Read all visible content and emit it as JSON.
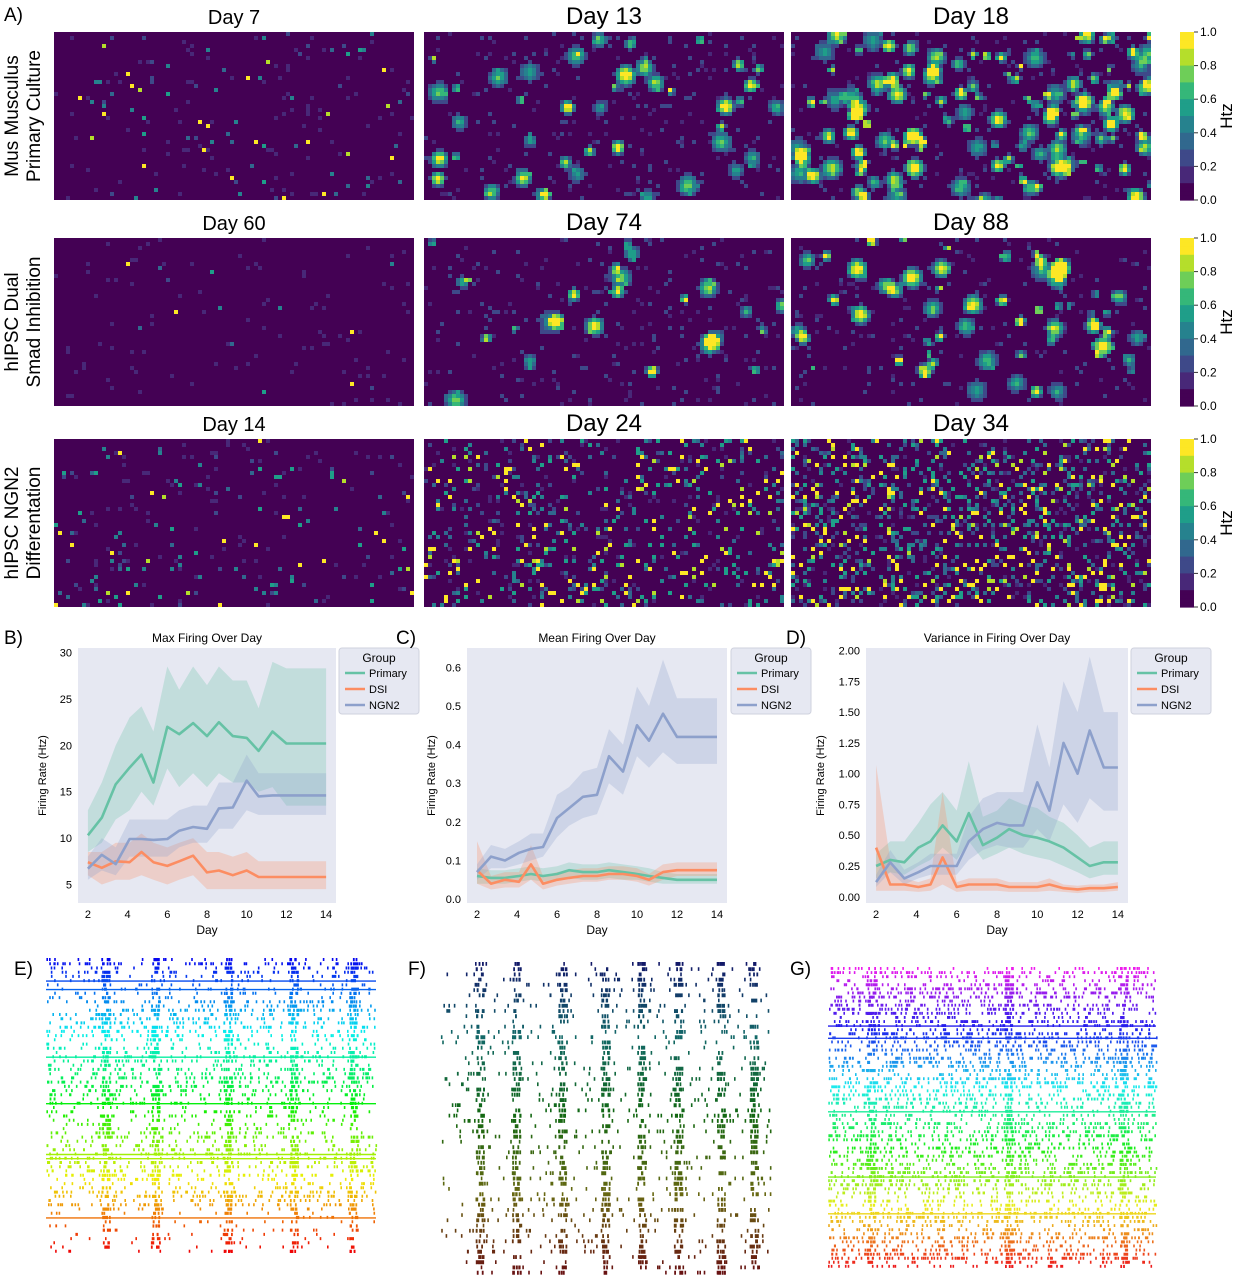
{
  "panel_labels": [
    "A)",
    "B)",
    "C)",
    "D)",
    "E)",
    "F)",
    "G)"
  ],
  "colors": {
    "viridis": [
      "#440154",
      "#482878",
      "#3e4989",
      "#31688e",
      "#26828e",
      "#1f9e89",
      "#35b779",
      "#6ece58",
      "#b5de2b",
      "#fde725"
    ],
    "primary": "#66c2a5",
    "dsi": "#fc8d62",
    "ngn2": "#8da0cb",
    "axes_bg": "#e6e8f2"
  },
  "heatmaps": {
    "rows": [
      {
        "label_lines": [
          "Mus Musculus",
          "Primary Culture"
        ],
        "days": [
          "Day 7",
          "Day 13",
          "Day 18"
        ],
        "density": [
          0.02,
          0.1,
          0.3
        ],
        "pattern": [
          "sparse",
          "blobs",
          "blobs"
        ]
      },
      {
        "label_lines": [
          "hIPSC Dual",
          "Smad Inhibition"
        ],
        "days": [
          "Day 60",
          "Day 74",
          "Day 88"
        ],
        "density": [
          0.008,
          0.06,
          0.14
        ],
        "pattern": [
          "sparse",
          "blobs",
          "blobs"
        ]
      },
      {
        "label_lines": [
          "hIPSC NGN2",
          "Differentation"
        ],
        "days": [
          "Day 14",
          "Day 24",
          "Day 34"
        ],
        "density": [
          0.03,
          0.14,
          0.26
        ],
        "pattern": [
          "sparse",
          "dots",
          "dots"
        ]
      }
    ],
    "colorbar": {
      "label": "Htz",
      "ticks": [
        "0.0",
        "0.2",
        "0.4",
        "0.6",
        "0.8",
        "1.0"
      ]
    }
  },
  "chart_data": [
    {
      "type": "line",
      "title": "Max Firing Over Day",
      "xlabel": "Day",
      "ylabel": "Firing Rate (Htz)",
      "xlim": [
        1.5,
        14.5
      ],
      "ylim": [
        3,
        30.5
      ],
      "xticks": [
        2,
        4,
        6,
        8,
        10,
        12,
        14
      ],
      "yticks": [
        5,
        10,
        15,
        20,
        25,
        30
      ],
      "legend": {
        "title": "Group",
        "placement": "top-right"
      },
      "x": [
        2,
        2.7,
        3.4,
        4.1,
        4.7,
        5.3,
        6,
        6.6,
        7.3,
        8,
        8.6,
        9.3,
        10,
        10.6,
        11.3,
        12,
        12.6,
        13.3,
        14
      ],
      "series": [
        {
          "name": "Primary",
          "values": [
            10.3,
            12.2,
            15.8,
            17.6,
            19.0,
            16.0,
            22.0,
            21.2,
            22.4,
            21.0,
            22.5,
            21.0,
            20.8,
            19.4,
            21.5,
            20.2,
            20.2,
            20.2,
            20.2
          ],
          "lower": [
            8.5,
            9.5,
            12,
            13,
            15,
            13.5,
            17.5,
            15.5,
            17,
            15.5,
            17,
            16,
            16,
            15,
            15.5,
            13.5,
            13.5,
            13.5,
            13.5
          ],
          "upper": [
            13,
            16,
            20,
            23,
            24.2,
            21.5,
            28.5,
            26,
            28.5,
            26.5,
            28.5,
            27,
            27,
            24,
            29,
            28.3,
            28.3,
            28.3,
            28.3
          ]
        },
        {
          "name": "DSI",
          "values": [
            7.4,
            6.8,
            7.5,
            7.4,
            8.5,
            7.4,
            7.0,
            7.5,
            8.1,
            6.3,
            6.5,
            6.0,
            6.5,
            5.8,
            5.8,
            5.8,
            5.8,
            5.8,
            5.8
          ],
          "lower": [
            6,
            5,
            5.5,
            5.5,
            6,
            5.5,
            5,
            5.5,
            6,
            4.5,
            4.5,
            4.5,
            4.5,
            4.5,
            4.5,
            4.5,
            4.5,
            4.5,
            4.5
          ],
          "upper": [
            8.5,
            8.5,
            9.5,
            9.5,
            10.5,
            9.5,
            9,
            9.5,
            10,
            8.5,
            8.5,
            8,
            8.5,
            7.5,
            7.5,
            7.5,
            7.5,
            7.5,
            7.5
          ]
        },
        {
          "name": "NGN2",
          "values": [
            6.7,
            8.2,
            7.2,
            9.9,
            9.9,
            9.8,
            9.9,
            10.8,
            11.2,
            11.0,
            13.2,
            13.3,
            16.2,
            14.5,
            14.6,
            14.6,
            14.6,
            14.6,
            14.6
          ],
          "lower": [
            5.5,
            6.5,
            6,
            8,
            8,
            8,
            8,
            9,
            9.5,
            9.5,
            11,
            11,
            13,
            12.5,
            12.5,
            12.5,
            12.5,
            12.5,
            12.5
          ],
          "upper": [
            8,
            10,
            9,
            12,
            12,
            12,
            12,
            13,
            13.5,
            13.5,
            16,
            16,
            19,
            17,
            17,
            17,
            17,
            17,
            17
          ]
        }
      ]
    },
    {
      "type": "line",
      "title": "Mean Firing Over Day",
      "xlabel": "Day",
      "ylabel": "Firing Rate (Htz)",
      "xlim": [
        1.5,
        14.5
      ],
      "ylim": [
        -0.01,
        0.65
      ],
      "xticks": [
        2,
        4,
        6,
        8,
        10,
        12,
        14
      ],
      "yticks": [
        0.0,
        0.1,
        0.2,
        0.3,
        0.4,
        0.5,
        0.6
      ],
      "legend": {
        "title": "Group",
        "placement": "top-right"
      },
      "x": [
        2,
        2.7,
        3.4,
        4.1,
        4.7,
        5.3,
        6,
        6.6,
        7.3,
        8,
        8.6,
        9.3,
        10,
        10.6,
        11.3,
        12,
        12.6,
        13.3,
        14
      ],
      "series": [
        {
          "name": "Primary",
          "values": [
            0.06,
            0.055,
            0.055,
            0.06,
            0.065,
            0.06,
            0.065,
            0.075,
            0.07,
            0.07,
            0.075,
            0.07,
            0.065,
            0.06,
            0.055,
            0.05,
            0.05,
            0.05,
            0.05
          ],
          "lower": [
            0.04,
            0.04,
            0.04,
            0.045,
            0.05,
            0.045,
            0.05,
            0.055,
            0.05,
            0.05,
            0.055,
            0.05,
            0.05,
            0.045,
            0.04,
            0.04,
            0.04,
            0.04,
            0.04
          ],
          "upper": [
            0.08,
            0.075,
            0.075,
            0.08,
            0.085,
            0.08,
            0.085,
            0.095,
            0.09,
            0.09,
            0.095,
            0.09,
            0.085,
            0.08,
            0.07,
            0.065,
            0.065,
            0.065,
            0.065
          ]
        },
        {
          "name": "DSI",
          "values": [
            0.075,
            0.04,
            0.05,
            0.045,
            0.09,
            0.04,
            0.05,
            0.055,
            0.06,
            0.06,
            0.065,
            0.065,
            0.06,
            0.05,
            0.07,
            0.075,
            0.075,
            0.075,
            0.075
          ],
          "lower": [
            0.04,
            0.025,
            0.03,
            0.03,
            0.05,
            0.025,
            0.035,
            0.04,
            0.045,
            0.045,
            0.05,
            0.05,
            0.045,
            0.035,
            0.05,
            0.06,
            0.06,
            0.06,
            0.06
          ],
          "upper": [
            0.15,
            0.06,
            0.07,
            0.07,
            0.14,
            0.06,
            0.07,
            0.075,
            0.08,
            0.08,
            0.085,
            0.085,
            0.08,
            0.065,
            0.09,
            0.095,
            0.095,
            0.095,
            0.095
          ]
        },
        {
          "name": "NGN2",
          "values": [
            0.07,
            0.11,
            0.1,
            0.12,
            0.13,
            0.135,
            0.21,
            0.235,
            0.265,
            0.27,
            0.37,
            0.33,
            0.45,
            0.41,
            0.48,
            0.42,
            0.42,
            0.42,
            0.42
          ],
          "lower": [
            0.05,
            0.08,
            0.08,
            0.09,
            0.1,
            0.11,
            0.16,
            0.19,
            0.21,
            0.22,
            0.3,
            0.27,
            0.37,
            0.34,
            0.38,
            0.35,
            0.35,
            0.35,
            0.35
          ],
          "upper": [
            0.09,
            0.14,
            0.13,
            0.15,
            0.17,
            0.17,
            0.27,
            0.29,
            0.33,
            0.34,
            0.44,
            0.4,
            0.55,
            0.5,
            0.62,
            0.52,
            0.52,
            0.52,
            0.52
          ]
        }
      ]
    },
    {
      "type": "line",
      "title": "Variance in Firing Over Day",
      "xlabel": "Day",
      "ylabel": "Firing Rate (Htz)",
      "xlim": [
        1.5,
        14.5
      ],
      "ylim": [
        -0.05,
        2.02
      ],
      "xticks": [
        2,
        4,
        6,
        8,
        10,
        12,
        14
      ],
      "yticks": [
        0.0,
        0.25,
        0.5,
        0.75,
        1.0,
        1.25,
        1.5,
        1.75,
        2.0
      ],
      "legend": {
        "title": "Group",
        "placement": "top-right"
      },
      "x": [
        2,
        2.7,
        3.4,
        4.1,
        4.7,
        5.3,
        6,
        6.6,
        7.3,
        8,
        8.6,
        9.3,
        10,
        10.6,
        11.3,
        12,
        12.6,
        13.3,
        14
      ],
      "series": [
        {
          "name": "Primary",
          "values": [
            0.25,
            0.3,
            0.28,
            0.4,
            0.45,
            0.58,
            0.45,
            0.68,
            0.42,
            0.48,
            0.55,
            0.5,
            0.48,
            0.45,
            0.4,
            0.32,
            0.25,
            0.28,
            0.28
          ],
          "lower": [
            0.15,
            0.2,
            0.18,
            0.25,
            0.3,
            0.4,
            0.3,
            0.45,
            0.3,
            0.35,
            0.4,
            0.35,
            0.32,
            0.3,
            0.25,
            0.2,
            0.15,
            0.18,
            0.18
          ],
          "upper": [
            0.35,
            0.45,
            0.45,
            0.6,
            0.75,
            0.85,
            0.7,
            1.1,
            0.65,
            0.7,
            0.8,
            0.75,
            0.72,
            0.65,
            0.6,
            0.5,
            0.4,
            0.45,
            0.45
          ]
        },
        {
          "name": "DSI",
          "values": [
            0.4,
            0.1,
            0.1,
            0.08,
            0.1,
            0.32,
            0.08,
            0.1,
            0.1,
            0.1,
            0.08,
            0.08,
            0.08,
            0.1,
            0.07,
            0.06,
            0.07,
            0.07,
            0.08
          ],
          "lower": [
            0.05,
            0.05,
            0.05,
            0.04,
            0.05,
            0.1,
            0.04,
            0.05,
            0.05,
            0.05,
            0.04,
            0.04,
            0.04,
            0.05,
            0.04,
            0.03,
            0.04,
            0.04,
            0.05
          ],
          "upper": [
            1.07,
            0.3,
            0.15,
            0.12,
            0.15,
            0.85,
            0.12,
            0.15,
            0.15,
            0.15,
            0.12,
            0.12,
            0.12,
            0.15,
            0.1,
            0.09,
            0.1,
            0.1,
            0.12
          ]
        },
        {
          "name": "NGN2",
          "values": [
            0.12,
            0.28,
            0.15,
            0.2,
            0.25,
            0.25,
            0.25,
            0.45,
            0.55,
            0.6,
            0.58,
            0.58,
            0.93,
            0.7,
            1.25,
            1.0,
            1.35,
            1.05,
            1.05
          ],
          "lower": [
            0.08,
            0.2,
            0.1,
            0.15,
            0.18,
            0.18,
            0.18,
            0.3,
            0.38,
            0.42,
            0.4,
            0.4,
            0.55,
            0.45,
            0.75,
            0.6,
            0.8,
            0.7,
            0.7
          ],
          "upper": [
            0.18,
            0.38,
            0.22,
            0.28,
            0.35,
            0.35,
            0.35,
            0.65,
            0.8,
            0.85,
            0.85,
            0.85,
            1.4,
            1.05,
            1.75,
            1.5,
            1.95,
            1.5,
            1.5
          ]
        }
      ]
    }
  ],
  "rasters": [
    {
      "label": "E)",
      "palette": "jet",
      "bursts": [
        0.18,
        0.33,
        0.55,
        0.75,
        0.93
      ],
      "density": 0.5
    },
    {
      "label": "F)",
      "palette": "dark",
      "bursts": [
        0.12,
        0.23,
        0.37,
        0.5,
        0.61,
        0.72,
        0.85,
        0.95
      ],
      "density": 0.18
    },
    {
      "label": "G)",
      "palette": "rainbow",
      "bursts": [
        0.13,
        0.55,
        0.9
      ],
      "density": 0.75
    }
  ]
}
